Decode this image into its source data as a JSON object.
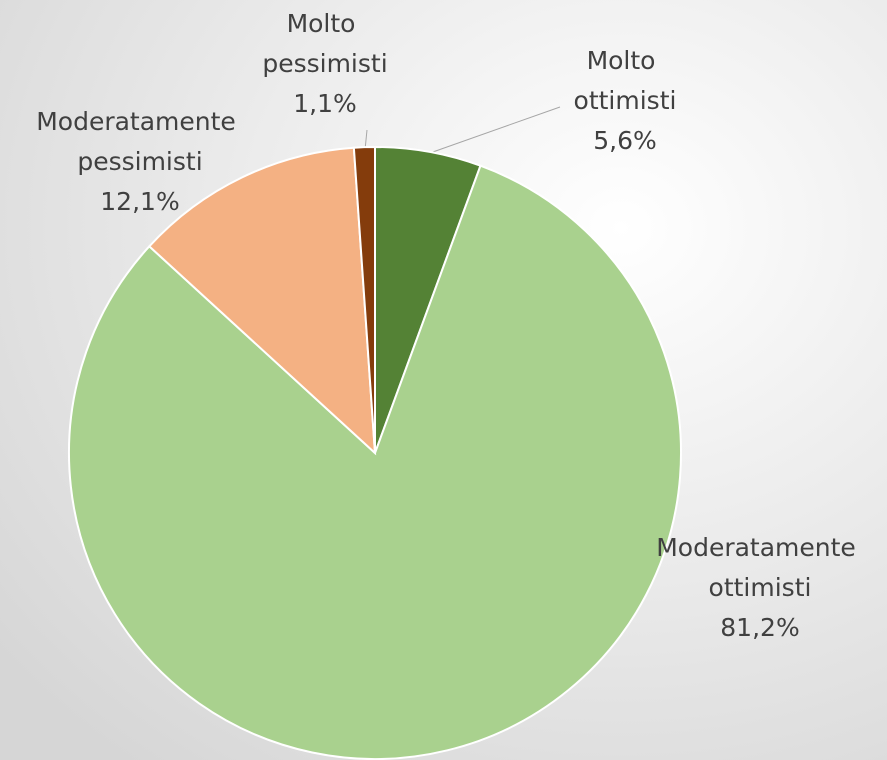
{
  "chart_data": {
    "type": "pie",
    "categories": [
      "Molto ottimisti",
      "Moderatamente ottimisti",
      "Moderatamente pessimisti",
      "Molto pessimisti"
    ],
    "values": [
      5.6,
      81.2,
      12.1,
      1.1
    ],
    "value_labels": [
      "5,6%",
      "81,2%",
      "12,1%",
      "1,1%"
    ],
    "colors": [
      "#548235",
      "#a9d18e",
      "#f4b183",
      "#843c0c"
    ]
  }
}
